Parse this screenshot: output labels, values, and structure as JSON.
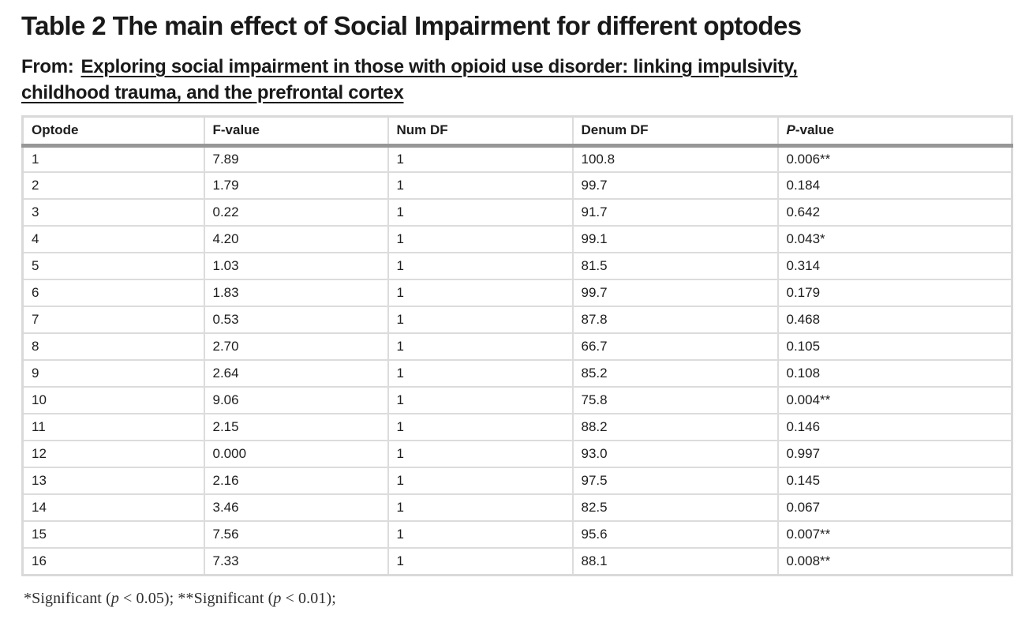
{
  "header": {
    "title": "Table 2 The main effect of Social Impairment for different optodes",
    "from_label": "From:",
    "source_link": {
      "line1": "Exploring social impairment in those with opioid use disorder: linking impulsivity,",
      "line2": "childhood trauma, and the prefrontal cortex"
    }
  },
  "table": {
    "columns": [
      {
        "label": "Optode",
        "italic_prefix_chars": 0
      },
      {
        "label": "F-value",
        "italic_prefix_chars": 0
      },
      {
        "label": "Num DF",
        "italic_prefix_chars": 0
      },
      {
        "label": "Denum DF",
        "italic_prefix_chars": 0
      },
      {
        "label": "P-value",
        "italic_prefix_chars": 1
      }
    ],
    "rows": [
      [
        "1",
        "7.89",
        "1",
        "100.8",
        "0.006**"
      ],
      [
        "2",
        "1.79",
        "1",
        "99.7",
        "0.184"
      ],
      [
        "3",
        "0.22",
        "1",
        "91.7",
        "0.642"
      ],
      [
        "4",
        "4.20",
        "1",
        "99.1",
        "0.043*"
      ],
      [
        "5",
        "1.03",
        "1",
        "81.5",
        "0.314"
      ],
      [
        "6",
        "1.83",
        "1",
        "99.7",
        "0.179"
      ],
      [
        "7",
        "0.53",
        "1",
        "87.8",
        "0.468"
      ],
      [
        "8",
        "2.70",
        "1",
        "66.7",
        "0.105"
      ],
      [
        "9",
        "2.64",
        "1",
        "85.2",
        "0.108"
      ],
      [
        "10",
        "9.06",
        "1",
        "75.8",
        "0.004**"
      ],
      [
        "11",
        "2.15",
        "1",
        "88.2",
        "0.146"
      ],
      [
        "12",
        "0.000",
        "1",
        "93.0",
        "0.997"
      ],
      [
        "13",
        "2.16",
        "1",
        "97.5",
        "0.145"
      ],
      [
        "14",
        "3.46",
        "1",
        "82.5",
        "0.067"
      ],
      [
        "15",
        "7.56",
        "1",
        "95.6",
        "0.007**"
      ],
      [
        "16",
        "7.33",
        "1",
        "88.1",
        "0.008**"
      ]
    ]
  },
  "footnote": {
    "parts": [
      {
        "text": "*Significant (",
        "italic": false
      },
      {
        "text": "p",
        "italic": true
      },
      {
        "text": " < 0.05); **Significant (",
        "italic": false
      },
      {
        "text": "p",
        "italic": true
      },
      {
        "text": " < 0.01);",
        "italic": false
      }
    ]
  },
  "colors": {
    "text": "#1d1d1d",
    "table_frame": "#d9d9d9",
    "cell_border": "#dcdcdc",
    "header_separator": "#979797",
    "background": "#ffffff"
  }
}
